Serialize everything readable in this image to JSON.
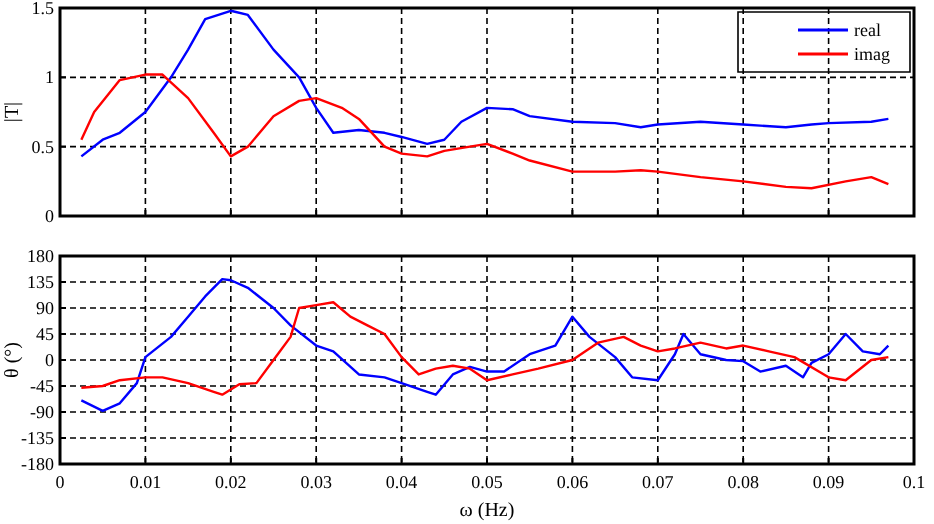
{
  "chart_data": [
    {
      "type": "line",
      "ylabel": "|T|",
      "xlim": [
        0,
        0.1
      ],
      "xticks": [
        0,
        0.01,
        0.02,
        0.03,
        0.04,
        0.05,
        0.06,
        0.07,
        0.08,
        0.09,
        0.1
      ],
      "ylim": [
        0,
        1.5
      ],
      "yticks": [
        0,
        0.5,
        1,
        1.5
      ],
      "tick_labels": "y",
      "grid": true,
      "legend": "top right",
      "line_style": "solid",
      "series": [
        {
          "name": "real",
          "color": "#0000ff",
          "x": [
            0.0025,
            0.005,
            0.007,
            0.01,
            0.013,
            0.015,
            0.017,
            0.02,
            0.022,
            0.025,
            0.028,
            0.03,
            0.032,
            0.035,
            0.038,
            0.04,
            0.043,
            0.045,
            0.047,
            0.05,
            0.053,
            0.055,
            0.06,
            0.065,
            0.068,
            0.07,
            0.075,
            0.08,
            0.085,
            0.088,
            0.09,
            0.095,
            0.097
          ],
          "values": [
            0.43,
            0.55,
            0.6,
            0.75,
            1.0,
            1.2,
            1.42,
            1.48,
            1.45,
            1.2,
            1.0,
            0.78,
            0.6,
            0.62,
            0.6,
            0.57,
            0.52,
            0.55,
            0.68,
            0.78,
            0.77,
            0.72,
            0.68,
            0.67,
            0.64,
            0.66,
            0.68,
            0.66,
            0.64,
            0.66,
            0.67,
            0.68,
            0.7
          ]
        },
        {
          "name": "imag",
          "color": "#ff0000",
          "x": [
            0.0025,
            0.004,
            0.007,
            0.01,
            0.012,
            0.015,
            0.018,
            0.02,
            0.022,
            0.025,
            0.028,
            0.03,
            0.033,
            0.035,
            0.038,
            0.04,
            0.043,
            0.045,
            0.048,
            0.05,
            0.053,
            0.055,
            0.06,
            0.065,
            0.068,
            0.07,
            0.075,
            0.08,
            0.085,
            0.088,
            0.092,
            0.095,
            0.097
          ],
          "values": [
            0.55,
            0.75,
            0.98,
            1.02,
            1.02,
            0.85,
            0.6,
            0.43,
            0.5,
            0.72,
            0.83,
            0.85,
            0.78,
            0.7,
            0.5,
            0.45,
            0.43,
            0.47,
            0.5,
            0.52,
            0.45,
            0.4,
            0.32,
            0.32,
            0.33,
            0.32,
            0.28,
            0.25,
            0.21,
            0.2,
            0.25,
            0.28,
            0.23
          ]
        }
      ]
    },
    {
      "type": "line",
      "xlabel": "ω (Hz)",
      "ylabel": "θ (°)",
      "xlim": [
        0,
        0.1
      ],
      "xticks": [
        0,
        0.01,
        0.02,
        0.03,
        0.04,
        0.05,
        0.06,
        0.07,
        0.08,
        0.09,
        0.1
      ],
      "ylim": [
        -180,
        180
      ],
      "yticks": [
        -180,
        -135,
        -90,
        -45,
        0,
        45,
        90,
        135,
        180
      ],
      "grid": true,
      "line_style": "solid",
      "series": [
        {
          "color": "#0000ff",
          "x": [
            0.0025,
            0.005,
            0.007,
            0.009,
            0.01,
            0.013,
            0.015,
            0.017,
            0.019,
            0.02,
            0.022,
            0.025,
            0.027,
            0.03,
            0.032,
            0.035,
            0.038,
            0.04,
            0.043,
            0.044,
            0.046,
            0.048,
            0.05,
            0.052,
            0.055,
            0.058,
            0.06,
            0.062,
            0.065,
            0.067,
            0.07,
            0.072,
            0.073,
            0.075,
            0.078,
            0.08,
            0.082,
            0.085,
            0.087,
            0.088,
            0.09,
            0.092,
            0.094,
            0.096,
            0.097
          ],
          "values": [
            -70,
            -88,
            -75,
            -40,
            5,
            40,
            75,
            110,
            140,
            138,
            125,
            90,
            60,
            25,
            15,
            -25,
            -30,
            -40,
            -55,
            -60,
            -25,
            -12,
            -20,
            -20,
            10,
            25,
            75,
            40,
            5,
            -30,
            -35,
            10,
            45,
            10,
            0,
            -2,
            -20,
            -10,
            -30,
            -5,
            10,
            45,
            15,
            10,
            25
          ]
        },
        {
          "color": "#ff0000",
          "x": [
            0.0025,
            0.005,
            0.007,
            0.01,
            0.012,
            0.015,
            0.018,
            0.019,
            0.021,
            0.023,
            0.025,
            0.027,
            0.028,
            0.03,
            0.032,
            0.034,
            0.036,
            0.038,
            0.04,
            0.042,
            0.044,
            0.046,
            0.048,
            0.05,
            0.053,
            0.056,
            0.06,
            0.063,
            0.066,
            0.068,
            0.07,
            0.072,
            0.075,
            0.078,
            0.08,
            0.083,
            0.086,
            0.09,
            0.092,
            0.095,
            0.097
          ],
          "values": [
            -48,
            -45,
            -35,
            -30,
            -30,
            -40,
            -55,
            -60,
            -42,
            -40,
            0,
            40,
            90,
            95,
            100,
            75,
            60,
            45,
            5,
            -25,
            -15,
            -10,
            -15,
            -35,
            -25,
            -15,
            0,
            30,
            40,
            25,
            15,
            20,
            30,
            20,
            25,
            15,
            5,
            -30,
            -35,
            0,
            5
          ]
        }
      ]
    }
  ]
}
